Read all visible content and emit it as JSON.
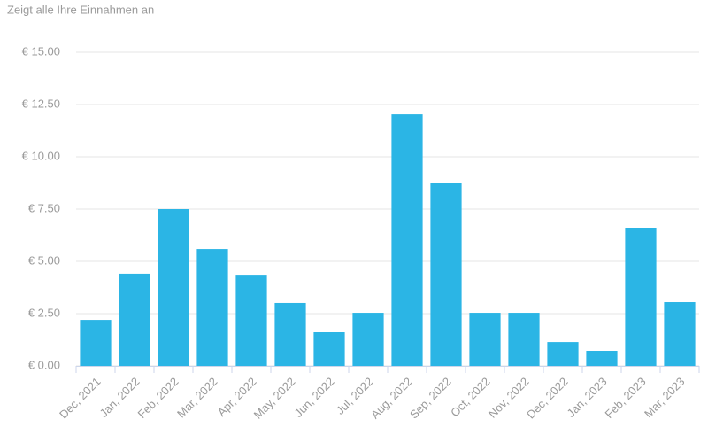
{
  "chart_data": {
    "type": "bar",
    "subtitle": "Zeigt alle Ihre Einnahmen an",
    "categories": [
      "Dec, 2021",
      "Jan, 2022",
      "Feb, 2022",
      "Mar, 2022",
      "Apr, 2022",
      "May, 2022",
      "Jun, 2022",
      "Jul, 2022",
      "Aug, 2022",
      "Sep, 2022",
      "Oct, 2022",
      "Nov, 2022",
      "Dec, 2022",
      "Jan, 2023",
      "Feb, 2023",
      "Mar, 2023"
    ],
    "values": [
      2.2,
      4.41,
      7.5,
      5.59,
      4.36,
      3.01,
      1.61,
      2.54,
      12.03,
      8.77,
      2.54,
      2.54,
      1.14,
      0.72,
      6.61,
      3.05
    ],
    "color": "#2bb5e5",
    "ylim": [
      0,
      15
    ],
    "yticks": [
      {
        "value": 0,
        "label": "€ 0.00"
      },
      {
        "value": 2.5,
        "label": "€ 2.50"
      },
      {
        "value": 5,
        "label": "€ 5.00"
      },
      {
        "value": 7.5,
        "label": "€ 7.50"
      },
      {
        "value": 10,
        "label": "€ 10.00"
      },
      {
        "value": 12.5,
        "label": "€ 12.50"
      },
      {
        "value": 15,
        "label": "€ 15.00"
      }
    ],
    "grid": true
  }
}
